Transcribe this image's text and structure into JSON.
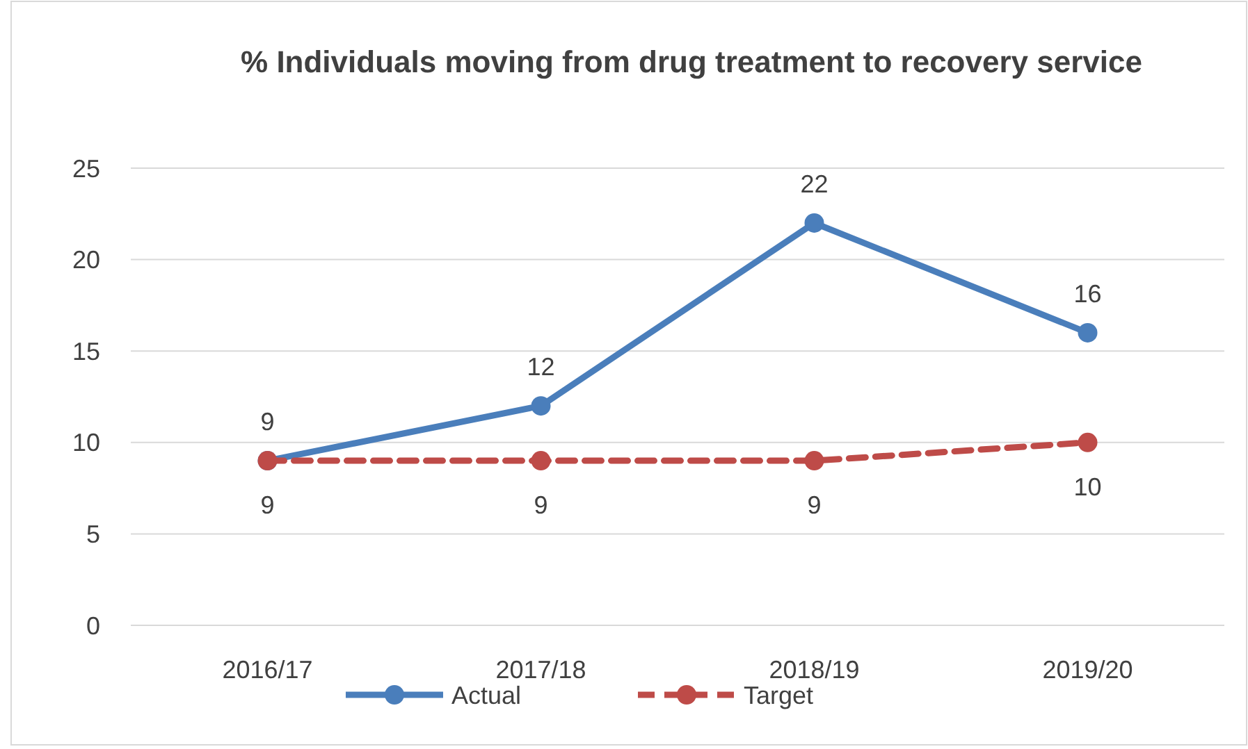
{
  "chart_data": {
    "type": "line",
    "title": "% Individuals moving from drug treatment to recovery service",
    "categories": [
      "2016/17",
      "2017/18",
      "2018/19",
      "2019/20"
    ],
    "series": [
      {
        "name": "Actual",
        "color": "#4a7ebb",
        "values": [
          9,
          12,
          22,
          16
        ]
      },
      {
        "name": "Target",
        "color": "#be4b48",
        "values": [
          9,
          9,
          9,
          10
        ],
        "line_style": "dashed"
      }
    ],
    "ylim": [
      0,
      25
    ],
    "yticks": [
      0,
      5,
      10,
      15,
      20,
      25
    ],
    "grid": "y",
    "legend": "bottom",
    "marker": "circle",
    "data_labels": true
  }
}
